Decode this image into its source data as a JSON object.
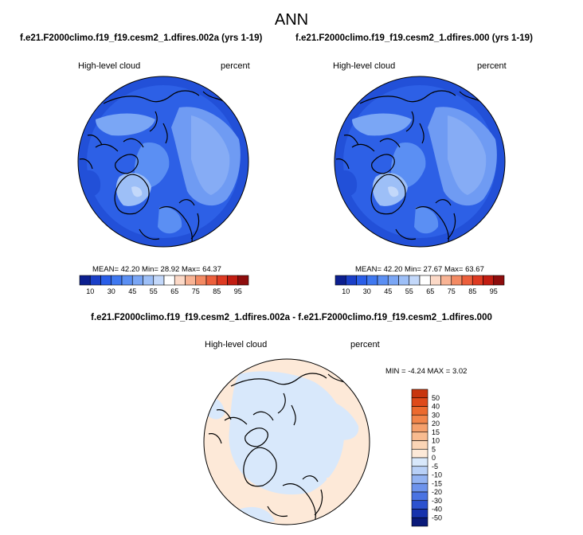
{
  "main_title": "ANN",
  "panels": [
    {
      "case_title": "f.e21.F2000climo.f19_f19.cesm2_1.dfires.002a (yrs 1-19)",
      "left_label": "High-level cloud",
      "right_label": "percent",
      "stats": "MEAN=  42.20  Min=  28.92  Max=  64.37"
    },
    {
      "case_title": "f.e21.F2000climo.f19_f19.cesm2_1.dfires.000 (yrs 1-19)",
      "left_label": "High-level cloud",
      "right_label": "percent",
      "stats": "MEAN=  42.20  Min=  27.67  Max=  63.67"
    }
  ],
  "diff_panel": {
    "title": "f.e21.F2000climo.f19_f19.cesm2_1.dfires.002a - f.e21.F2000climo.f19_f19.cesm2_1.dfires.000",
    "left_label": "High-level cloud",
    "right_label": "percent",
    "stats": "MIN =  -4.24  MAX =   3.02"
  },
  "chart_data": [
    {
      "type": "heatmap",
      "projection": "north-polar-stereographic",
      "title": "f.e21.F2000climo.f19_f19.cesm2_1.dfires.002a (yrs 1-19)",
      "variable": "High-level cloud",
      "units": "percent",
      "mean": 42.2,
      "min": 28.92,
      "max": 64.37,
      "colorbar_ticks": [
        "10",
        "30",
        "45",
        "55",
        "65",
        "75",
        "85",
        "95"
      ],
      "colorbar_colors": [
        "#0c1f8f",
        "#1a3fc8",
        "#2a5ee8",
        "#3f78f0",
        "#5b8ff3",
        "#7aa6f5",
        "#9dbff7",
        "#c3d8fa",
        "#ffffff",
        "#fcd9c7",
        "#f8b394",
        "#f38a63",
        "#ec5f3c",
        "#de3a22",
        "#c21d12",
        "#8e0d0d"
      ]
    },
    {
      "type": "heatmap",
      "projection": "north-polar-stereographic",
      "title": "f.e21.F2000climo.f19_f19.cesm2_1.dfires.000 (yrs 1-19)",
      "variable": "High-level cloud",
      "units": "percent",
      "mean": 42.2,
      "min": 27.67,
      "max": 63.67,
      "colorbar_ticks": [
        "10",
        "30",
        "45",
        "55",
        "65",
        "75",
        "85",
        "95"
      ],
      "colorbar_colors": [
        "#0c1f8f",
        "#1a3fc8",
        "#2a5ee8",
        "#3f78f0",
        "#5b8ff3",
        "#7aa6f5",
        "#9dbff7",
        "#c3d8fa",
        "#ffffff",
        "#fcd9c7",
        "#f8b394",
        "#f38a63",
        "#ec5f3c",
        "#de3a22",
        "#c21d12",
        "#8e0d0d"
      ]
    },
    {
      "type": "heatmap",
      "projection": "north-polar-stereographic",
      "title": "f.e21.F2000climo.f19_f19.cesm2_1.dfires.002a - f.e21.F2000climo.f19_f19.cesm2_1.dfires.000",
      "variable": "High-level cloud",
      "units": "percent",
      "min": -4.24,
      "max": 3.02,
      "colorbar_ticks": [
        "50",
        "40",
        "30",
        "20",
        "15",
        "10",
        "5",
        "0",
        "-5",
        "-10",
        "-15",
        "-20",
        "-30",
        "-40",
        "-50"
      ],
      "colorbar_colors": [
        "#c8360f",
        "#de4a1a",
        "#ec6a2e",
        "#f2854a",
        "#f5a06c",
        "#f8bb90",
        "#fbd5b6",
        "#fde9d8",
        "#d8e8fb",
        "#b8d0f7",
        "#93b3f2",
        "#6d93ec",
        "#4a73e2",
        "#2c52cf",
        "#1733ad",
        "#0a1a7a"
      ]
    }
  ]
}
